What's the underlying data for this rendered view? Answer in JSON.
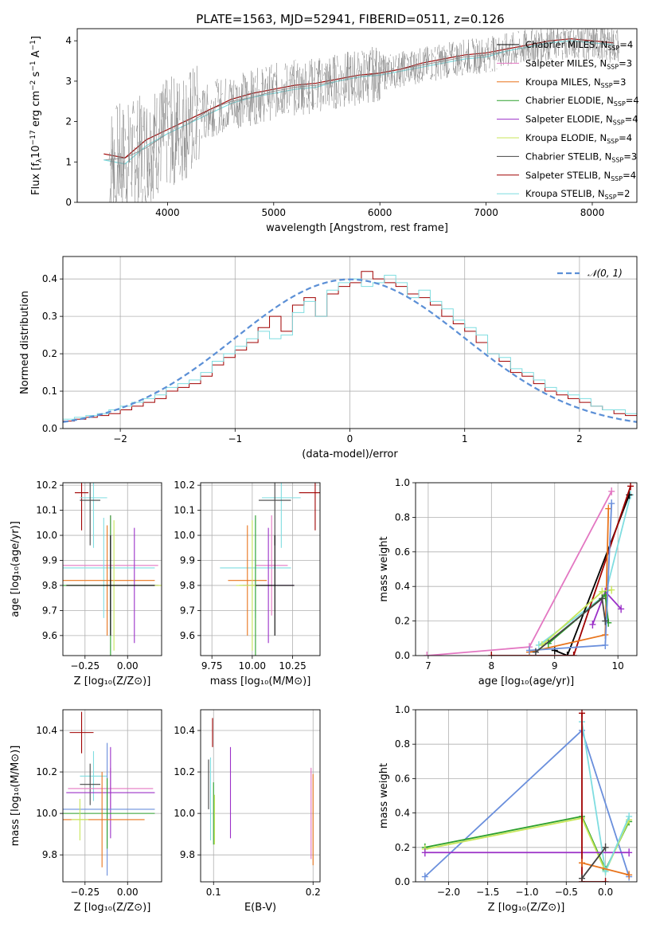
{
  "figure_title": "PLATE=1563, MJD=52941, FIBERID=0511, z=0.126",
  "colors": {
    "Chabrier MILES": "#000000",
    "Salpeter MILES": "#e377c2",
    "Kroupa MILES": "#e8741c",
    "Chabrier ELODIE": "#2ca02c",
    "Salpeter ELODIE": "#9b30c8",
    "Kroupa ELODIE": "#c8e65a",
    "Chabrier STELIB": "#444444",
    "Salpeter STELIB": "#a00000",
    "Kroupa STELIB": "#7fdde0",
    "data": "#808080",
    "blue": "#6a8fdc",
    "normal": "#5b8fd6"
  },
  "chart_data": [
    {
      "id": "spectrum",
      "type": "line",
      "title": "PLATE=1563, MJD=52941, FIBERID=0511, z=0.126",
      "xlabel": "wavelength [Angstrom, rest frame]",
      "ylabel": "Flux [f",
      "ylabel_parts": [
        "Flux [f",
        "λ",
        "10",
        "−17",
        " erg cm",
        "−2",
        " s",
        "−1",
        " A",
        "−1",
        "]"
      ],
      "xlim": [
        3150,
        8420
      ],
      "ylim": [
        0,
        4.3
      ],
      "xticks": [
        4000,
        5000,
        6000,
        7000,
        8000
      ],
      "yticks": [
        0,
        1,
        2,
        3,
        4
      ],
      "legend": [
        "Chabrier MILES",
        "Salpeter MILES",
        "Kroupa MILES",
        "Chabrier ELODIE",
        "Salpeter ELODIE",
        "Kroupa ELODIE",
        "Chabrier STELIB",
        "Salpeter STELIB",
        "Kroupa STELIB"
      ],
      "legend_nssp": [
        4,
        3,
        3,
        4,
        4,
        4,
        3,
        4,
        2
      ],
      "legend_position": "top-right",
      "series": [
        {
          "name": "data",
          "x": [
            3400,
            3600,
            3800,
            4000,
            4200,
            4400,
            4600,
            4800,
            5000,
            5200,
            5400,
            5600,
            5800,
            6000,
            6200,
            6400,
            6600,
            6800,
            7000,
            7200,
            7400,
            7600,
            7800,
            8000,
            8200
          ],
          "y": [
            1.05,
            1.1,
            1.35,
            1.7,
            1.95,
            2.3,
            2.5,
            2.6,
            2.75,
            2.85,
            2.9,
            3.0,
            3.1,
            3.2,
            3.3,
            3.4,
            3.5,
            3.6,
            3.65,
            3.75,
            3.85,
            3.95,
            4.0,
            3.95,
            3.9
          ]
        },
        {
          "name": "Kroupa STELIB",
          "x": [
            3400,
            3600,
            3800,
            4000,
            4200,
            4400,
            4600,
            4800,
            5000,
            5200,
            5400,
            5600,
            5800,
            6000,
            6200,
            6400,
            6600,
            6800,
            7000,
            7200,
            7400,
            7600,
            7800,
            8000,
            8200
          ],
          "y": [
            1.05,
            0.95,
            1.4,
            1.7,
            1.95,
            2.2,
            2.45,
            2.6,
            2.7,
            2.8,
            2.85,
            3.0,
            3.1,
            3.15,
            3.25,
            3.35,
            3.45,
            3.55,
            3.6,
            3.75,
            3.85,
            3.95,
            4.0,
            3.95,
            3.9
          ]
        },
        {
          "name": "Salpeter STELIB",
          "x": [
            3400,
            3600,
            3800,
            4000,
            4200,
            4400,
            4600,
            4800,
            5000,
            5200,
            5400,
            5600,
            5800,
            6000,
            6200,
            6400,
            6600,
            6800,
            7000,
            7200,
            7400,
            7600,
            7800,
            8000,
            8200
          ],
          "y": [
            1.2,
            1.1,
            1.55,
            1.8,
            2.05,
            2.3,
            2.55,
            2.7,
            2.8,
            2.9,
            2.95,
            3.05,
            3.15,
            3.2,
            3.3,
            3.45,
            3.55,
            3.65,
            3.7,
            3.8,
            3.9,
            4.0,
            4.05,
            4.0,
            3.95
          ]
        }
      ]
    },
    {
      "id": "residuals",
      "type": "line",
      "xlabel": "(data-model)/error",
      "ylabel": "Normed distribution",
      "xlim": [
        -2.5,
        2.5
      ],
      "ylim": [
        0,
        0.46
      ],
      "xticks": [
        -2,
        -1,
        0,
        1,
        2
      ],
      "yticks": [
        0.0,
        0.1,
        0.2,
        0.3,
        0.4
      ],
      "legend": [
        "𝒩(0, 1)"
      ],
      "legend_position": "top-right",
      "bin_width": 0.1,
      "bin_start": -2.5,
      "series": [
        {
          "name": "𝒩(0, 1)",
          "kind": "gaussian",
          "mean": 0,
          "sigma": 1
        },
        {
          "name": "Salpeter STELIB",
          "values": [
            0.02,
            0.025,
            0.03,
            0.035,
            0.04,
            0.05,
            0.06,
            0.07,
            0.08,
            0.1,
            0.11,
            0.12,
            0.14,
            0.17,
            0.19,
            0.21,
            0.23,
            0.27,
            0.3,
            0.26,
            0.33,
            0.35,
            0.3,
            0.36,
            0.38,
            0.39,
            0.42,
            0.4,
            0.39,
            0.38,
            0.36,
            0.35,
            0.33,
            0.3,
            0.28,
            0.26,
            0.23,
            0.2,
            0.18,
            0.15,
            0.14,
            0.12,
            0.1,
            0.09,
            0.08,
            0.07,
            0.06,
            0.05,
            0.04,
            0.035
          ]
        },
        {
          "name": "Kroupa STELIB",
          "values": [
            0.025,
            0.03,
            0.035,
            0.04,
            0.05,
            0.06,
            0.07,
            0.08,
            0.09,
            0.11,
            0.12,
            0.13,
            0.15,
            0.18,
            0.2,
            0.22,
            0.24,
            0.26,
            0.24,
            0.25,
            0.31,
            0.34,
            0.3,
            0.37,
            0.39,
            0.4,
            0.38,
            0.39,
            0.41,
            0.39,
            0.35,
            0.37,
            0.34,
            0.32,
            0.29,
            0.27,
            0.25,
            0.2,
            0.19,
            0.16,
            0.15,
            0.13,
            0.11,
            0.1,
            0.09,
            0.08,
            0.06,
            0.05,
            0.05,
            0.04
          ]
        }
      ]
    },
    {
      "id": "age_vs_Z",
      "type": "scatter",
      "xlabel": "Z [log10(Z/Z⊙)]",
      "ylabel": "age  [log10(age/yr)]",
      "xlim": [
        -0.38,
        0.2
      ],
      "ylim": [
        9.52,
        10.21
      ],
      "xticks": [
        -0.25,
        0.0
      ],
      "yticks": [
        9.6,
        9.7,
        9.8,
        9.9,
        10.0,
        10.1,
        10.2
      ],
      "points": [
        {
          "series": "Salpeter STELIB",
          "x": -0.27,
          "y": 10.17,
          "xerr": 0.04,
          "yerr": 0.15
        },
        {
          "series": "Kroupa STELIB",
          "x": -0.2,
          "y": 10.15,
          "xerr": 0.08,
          "yerr": 0.2
        },
        {
          "series": "Chabrier STELIB",
          "x": -0.22,
          "y": 10.14,
          "xerr": 0.06,
          "yerr": 0.18
        },
        {
          "series": "Salpeter MILES",
          "x": -0.1,
          "y": 9.88,
          "xerr": 0.28,
          "yerr": 0.2
        },
        {
          "series": "Kroupa STELIB",
          "x": -0.14,
          "y": 9.87,
          "xerr": 0.3,
          "yerr": 0.2
        },
        {
          "series": "Kroupa MILES",
          "x": -0.12,
          "y": 9.82,
          "xerr": 0.28,
          "yerr": 0.22
        },
        {
          "series": "Chabrier ELODIE",
          "x": -0.1,
          "y": 9.8,
          "xerr": 0.28,
          "yerr": 0.28
        },
        {
          "series": "Salpeter ELODIE",
          "x": 0.04,
          "y": 9.8,
          "xerr": 0.15,
          "yerr": 0.23
        },
        {
          "series": "Kroupa ELODIE",
          "x": -0.08,
          "y": 9.8,
          "xerr": 0.28,
          "yerr": 0.26
        },
        {
          "series": "Chabrier MILES",
          "x": -0.1,
          "y": 9.8,
          "xerr": 0.26,
          "yerr": 0.2
        }
      ]
    },
    {
      "id": "age_vs_mass",
      "type": "scatter",
      "xlabel": "mass [log10(M/M⊙)]",
      "xlim": [
        9.68,
        10.42
      ],
      "ylim": [
        9.52,
        10.21
      ],
      "xticks": [
        9.75,
        10.0,
        10.25
      ],
      "xticklabels": [
        "9.75",
        "10.00",
        "10.25"
      ],
      "yticks": [
        9.6,
        9.7,
        9.8,
        9.9,
        10.0,
        10.1,
        10.2
      ],
      "points": [
        {
          "series": "Salpeter STELIB",
          "x": 10.39,
          "y": 10.17,
          "xerr": 0.1,
          "yerr": 0.15
        },
        {
          "series": "Kroupa STELIB",
          "x": 10.18,
          "y": 10.15,
          "xerr": 0.12,
          "yerr": 0.2
        },
        {
          "series": "Chabrier STELIB",
          "x": 10.14,
          "y": 10.14,
          "xerr": 0.1,
          "yerr": 0.18
        },
        {
          "series": "Salpeter MILES",
          "x": 10.12,
          "y": 9.88,
          "xerr": 0.1,
          "yerr": 0.2
        },
        {
          "series": "Kroupa STELIB",
          "x": 10.02,
          "y": 9.87,
          "xerr": 0.22,
          "yerr": 0.2
        },
        {
          "series": "Kroupa MILES",
          "x": 9.97,
          "y": 9.82,
          "xerr": 0.12,
          "yerr": 0.22
        },
        {
          "series": "Chabrier ELODIE",
          "x": 10.02,
          "y": 9.8,
          "xerr": 0.1,
          "yerr": 0.28
        },
        {
          "series": "Salpeter ELODIE",
          "x": 10.1,
          "y": 9.8,
          "xerr": 0.16,
          "yerr": 0.23
        },
        {
          "series": "Kroupa ELODIE",
          "x": 10.0,
          "y": 9.8,
          "xerr": 0.1,
          "yerr": 0.26
        },
        {
          "series": "Chabrier MILES",
          "x": 10.14,
          "y": 9.8,
          "xerr": 0.12,
          "yerr": 0.2
        }
      ]
    },
    {
      "id": "weight_vs_age",
      "type": "line",
      "xlabel": "age  [log10(age/yr)]",
      "ylabel": "mass weight",
      "xlim": [
        6.8,
        10.3
      ],
      "ylim": [
        0,
        1.0
      ],
      "xticks": [
        7,
        8,
        9,
        10
      ],
      "yticks": [
        0.0,
        0.2,
        0.4,
        0.6,
        0.8,
        1.0
      ],
      "series": [
        {
          "name": "Salpeter MILES",
          "x": [
            6.98,
            8.6,
            9.9
          ],
          "y": [
            0.0,
            0.05,
            0.95
          ]
        },
        {
          "name": "Kroupa STELIB",
          "x": [
            8.75,
            9.8,
            10.2
          ],
          "y": [
            0.06,
            0.35,
            0.93
          ]
        },
        {
          "name": "Chabrier MILES",
          "x": [
            9.0,
            9.2,
            10.18
          ],
          "y": [
            0.03,
            0.0,
            0.93
          ]
        },
        {
          "name": "Salpeter STELIB",
          "x": [
            8.0,
            9.3,
            10.2
          ],
          "y": [
            0.0,
            0.0,
            0.98
          ]
        },
        {
          "name": "Kroupa MILES",
          "x": [
            8.6,
            9.8,
            9.85
          ],
          "y": [
            0.02,
            0.12,
            0.85
          ]
        },
        {
          "name": "Salpeter ELODIE",
          "x": [
            9.6,
            9.8,
            10.05
          ],
          "y": [
            0.18,
            0.37,
            0.27
          ]
        },
        {
          "name": "Kroupa ELODIE",
          "x": [
            8.8,
            9.75,
            9.9
          ],
          "y": [
            0.06,
            0.37,
            0.38
          ]
        },
        {
          "name": "Chabrier ELODIE",
          "x": [
            8.9,
            9.8,
            9.85
          ],
          "y": [
            0.07,
            0.35,
            0.19
          ]
        },
        {
          "name": "blue",
          "x": [
            8.6,
            9.8,
            9.9
          ],
          "y": [
            0.03,
            0.06,
            0.88
          ]
        },
        {
          "name": "Chabrier STELIB",
          "x": [
            8.7,
            9.75,
            9.8
          ],
          "y": [
            0.02,
            0.33,
            0.2
          ]
        }
      ]
    },
    {
      "id": "mass_vs_Z",
      "type": "scatter",
      "xlabel": "Z [log10(Z/Z⊙)]",
      "ylabel": "mass [log10(M/M⊙)]",
      "xlim": [
        -0.38,
        0.2
      ],
      "ylim": [
        9.67,
        10.5
      ],
      "xticks": [
        -0.25,
        0.0
      ],
      "xticklabels": [
        "−0.25",
        "0.00"
      ],
      "yticks": [
        9.8,
        10.0,
        10.2,
        10.4
      ],
      "points": [
        {
          "series": "Salpeter STELIB",
          "x": -0.27,
          "y": 10.39,
          "xerr": 0.07,
          "yerr": 0.1
        },
        {
          "series": "Kroupa STELIB",
          "x": -0.2,
          "y": 10.18,
          "xerr": 0.08,
          "yerr": 0.12
        },
        {
          "series": "Chabrier STELIB",
          "x": -0.22,
          "y": 10.14,
          "xerr": 0.06,
          "yerr": 0.1
        },
        {
          "series": "Salpeter MILES",
          "x": -0.1,
          "y": 10.12,
          "xerr": 0.25,
          "yerr": 0.1
        },
        {
          "series": "Salpeter ELODIE",
          "x": -0.1,
          "y": 10.1,
          "xerr": 0.26,
          "yerr": 0.22
        },
        {
          "series": "blue",
          "x": -0.12,
          "y": 10.02,
          "xerr": 0.28,
          "yerr": 0.32
        },
        {
          "series": "Chabrier ELODIE",
          "x": -0.12,
          "y": 10.0,
          "xerr": 0.28,
          "yerr": 0.17
        },
        {
          "series": "Kroupa MILES",
          "x": -0.15,
          "y": 9.97,
          "xerr": 0.25,
          "yerr": 0.23
        },
        {
          "series": "Kroupa ELODIE",
          "x": -0.28,
          "y": 9.97,
          "xerr": 0.05,
          "yerr": 0.1
        }
      ]
    },
    {
      "id": "mass_vs_ebv",
      "type": "scatter",
      "xlabel": "E(B-V)",
      "xlim": [
        0.087,
        0.207
      ],
      "ylim": [
        9.67,
        10.5
      ],
      "xticks": [
        0.1,
        0.2
      ],
      "yticks": [
        9.8,
        10.0,
        10.2,
        10.4
      ],
      "points": [
        {
          "series": "Salpeter STELIB",
          "x": 0.099,
          "y": 10.39,
          "yerr": 0.07
        },
        {
          "series": "Kroupa STELIB",
          "x": 0.097,
          "y": 10.07,
          "yerr": 0.2
        },
        {
          "series": "Chabrier STELIB",
          "x": 0.095,
          "y": 10.14,
          "yerr": 0.12
        },
        {
          "series": "Salpeter ELODIE",
          "x": 0.117,
          "y": 10.1,
          "yerr": 0.22
        },
        {
          "series": "Chabrier ELODIE",
          "x": 0.1,
          "y": 10.0,
          "yerr": 0.15
        },
        {
          "series": "Kroupa ELODIE",
          "x": 0.101,
          "y": 9.97,
          "yerr": 0.12
        },
        {
          "series": "Kroupa MILES",
          "x": 0.2,
          "y": 9.97,
          "yerr": 0.22
        },
        {
          "series": "Salpeter MILES",
          "x": 0.198,
          "y": 10.0,
          "yerr": 0.22
        }
      ]
    },
    {
      "id": "weight_vs_Z",
      "type": "line",
      "xlabel": "Z [log10(Z/Z⊙)]",
      "ylabel": "mass weight",
      "xlim": [
        -2.42,
        0.4
      ],
      "ylim": [
        0,
        1.0
      ],
      "xticks": [
        -2.0,
        -1.5,
        -1.0,
        -0.5,
        0.0
      ],
      "yticks": [
        0.0,
        0.2,
        0.4,
        0.6,
        0.8,
        1.0
      ],
      "series": [
        {
          "name": "blue",
          "x": [
            -2.3,
            -0.3,
            0.3
          ],
          "y": [
            0.03,
            0.88,
            0.03
          ]
        },
        {
          "name": "Chabrier ELODIE",
          "x": [
            -2.3,
            -0.3,
            0.0,
            0.3
          ],
          "y": [
            0.2,
            0.38,
            0.07,
            0.35
          ]
        },
        {
          "name": "Kroupa ELODIE",
          "x": [
            -2.3,
            -0.3,
            0.0,
            0.3
          ],
          "y": [
            0.19,
            0.37,
            0.06,
            0.36
          ]
        },
        {
          "name": "Salpeter ELODIE",
          "x": [
            -2.3,
            0.3
          ],
          "y": [
            0.17,
            0.17
          ]
        },
        {
          "name": "Kroupa STELIB",
          "x": [
            -0.3,
            0.0,
            0.3
          ],
          "y": [
            0.93,
            0.06,
            0.38
          ]
        },
        {
          "name": "Salpeter STELIB",
          "x": [
            -0.3,
            -0.3,
            0.0
          ],
          "y": [
            0.98,
            0.0,
            0.0
          ]
        },
        {
          "name": "Kroupa MILES",
          "x": [
            -0.3,
            0.3
          ],
          "y": [
            0.11,
            0.04
          ]
        },
        {
          "name": "Chabrier STELIB",
          "x": [
            -0.3,
            0.0
          ],
          "y": [
            0.02,
            0.2
          ]
        }
      ]
    }
  ]
}
